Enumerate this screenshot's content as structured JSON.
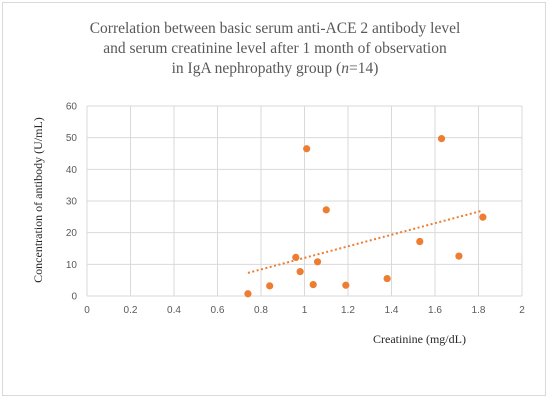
{
  "chart_data": {
    "type": "scatter",
    "title_lines": [
      "Correlation between basic serum anti-ACE 2 antibody level",
      "and serum creatinine level after 1 month of observation",
      "in IgA nephropathy group (n=14)"
    ],
    "xlabel": "Creatinine (mg/dL)",
    "ylabel": "Concentration of antibody (U/mL)",
    "xlim": [
      0,
      2
    ],
    "ylim": [
      0,
      60
    ],
    "x_ticks": [
      "0",
      "0.2",
      "0.4",
      "0.6",
      "0.8",
      "1",
      "1.2",
      "1.4",
      "1.6",
      "1.8",
      "2"
    ],
    "y_ticks": [
      "0",
      "10",
      "20",
      "30",
      "40",
      "50",
      "60"
    ],
    "grid": true,
    "series": [
      {
        "points": [
          {
            "x": 0.74,
            "y": 0.7
          },
          {
            "x": 0.84,
            "y": 3.2
          },
          {
            "x": 0.96,
            "y": 12.2
          },
          {
            "x": 0.98,
            "y": 7.7
          },
          {
            "x": 1.01,
            "y": 46.5
          },
          {
            "x": 1.04,
            "y": 3.6
          },
          {
            "x": 1.06,
            "y": 10.8
          },
          {
            "x": 1.1,
            "y": 27.2
          },
          {
            "x": 1.19,
            "y": 3.4
          },
          {
            "x": 1.38,
            "y": 5.5
          },
          {
            "x": 1.53,
            "y": 17.2
          },
          {
            "x": 1.63,
            "y": 49.7
          },
          {
            "x": 1.71,
            "y": 12.6
          },
          {
            "x": 1.82,
            "y": 24.9
          }
        ]
      }
    ],
    "trendline": {
      "type": "linear",
      "style": "dotted",
      "x_start": 0.74,
      "y_start": 7.3,
      "x_end": 1.82,
      "y_end": 27.0
    },
    "colors": {
      "marker": "#ED7D31",
      "trendline": "#ED7D31",
      "grid": "#D9D9D9",
      "text": "#595959"
    }
  }
}
